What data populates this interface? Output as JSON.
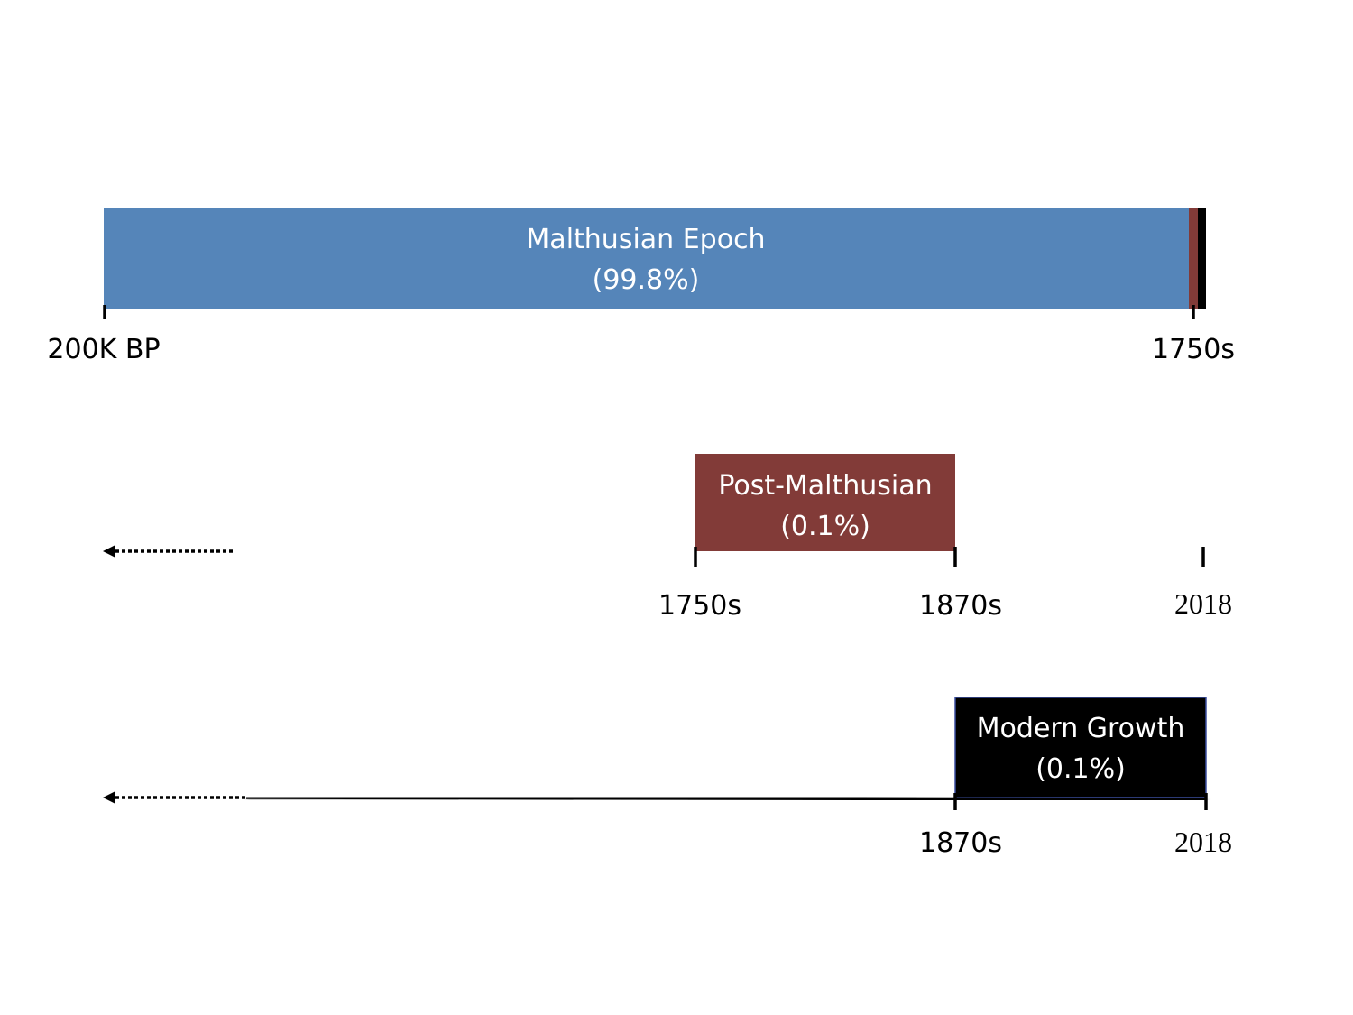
{
  "colors": {
    "malthusian": "#5585b9",
    "post_malthusian": "#823b38",
    "modern": "#000000",
    "modern_border": "#3b4fa0",
    "axis": "#000000",
    "box_text_light": "#ffffff"
  },
  "timeline_1": {
    "box": {
      "line1": "Malthusian Epoch",
      "line2": "(99.8%)"
    },
    "ticks": [
      "200K BP",
      "1750s"
    ]
  },
  "timeline_2": {
    "box": {
      "line1": "Post-Malthusian",
      "line2": "(0.1%)"
    },
    "ticks": [
      "1750s",
      "1870s",
      "2018"
    ]
  },
  "timeline_3": {
    "box": {
      "line1": "Modern Growth",
      "line2": "(0.1%)"
    },
    "ticks": [
      "1870s",
      "2018"
    ]
  }
}
